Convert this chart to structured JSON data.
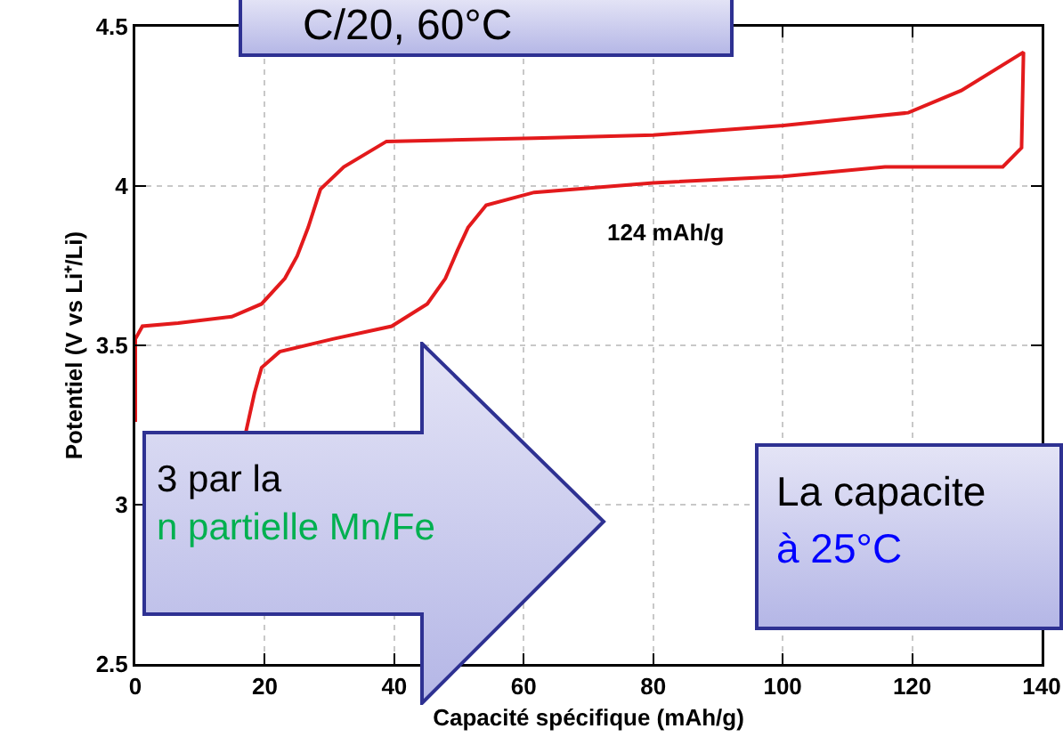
{
  "chart_data": {
    "type": "line",
    "xlabel": "Capacité spécifique (mAh/g)",
    "ylabel": "Potentiel (V vs Li⁺/Li)",
    "x": [
      0,
      0,
      1.1,
      6.6,
      14.9,
      19.5,
      23.1,
      25,
      26.7,
      28.6,
      32.2,
      38.8,
      61.6,
      80,
      100.1,
      119.4,
      127.6,
      137.2,
      136.9,
      134,
      115.8,
      100,
      80,
      61.6,
      54.2,
      51.4,
      49.8,
      47.9,
      45.1,
      39.6,
      30.5,
      22.3,
      19.5,
      18.4,
      17.1
    ],
    "series": [
      {
        "color": "#e31a1c",
        "values": [
          3.26,
          3.52,
          3.56,
          3.57,
          3.59,
          3.63,
          3.71,
          3.78,
          3.87,
          3.99,
          4.06,
          4.14,
          4.15,
          4.16,
          4.19,
          4.23,
          4.3,
          4.42,
          4.12,
          4.06,
          4.06,
          4.03,
          4.01,
          3.98,
          3.94,
          3.87,
          3.8,
          3.71,
          3.63,
          3.56,
          3.52,
          3.48,
          3.43,
          3.35,
          3.23
        ]
      }
    ],
    "xlim": [
      0,
      140
    ],
    "xticks": [
      0,
      20,
      40,
      60,
      80,
      100,
      120,
      140
    ],
    "ylim": [
      2.5,
      4.5
    ],
    "yticks": [
      2.5,
      3,
      3.5,
      4,
      4.5
    ],
    "grid": true,
    "marker": "none",
    "line_style": "solid",
    "annotations": [
      "C/20, 60°C",
      "3 par la",
      "n partielle Mn/Fe",
      "La capacite",
      "à 25°C",
      "124 mAh/g"
    ]
  }
}
